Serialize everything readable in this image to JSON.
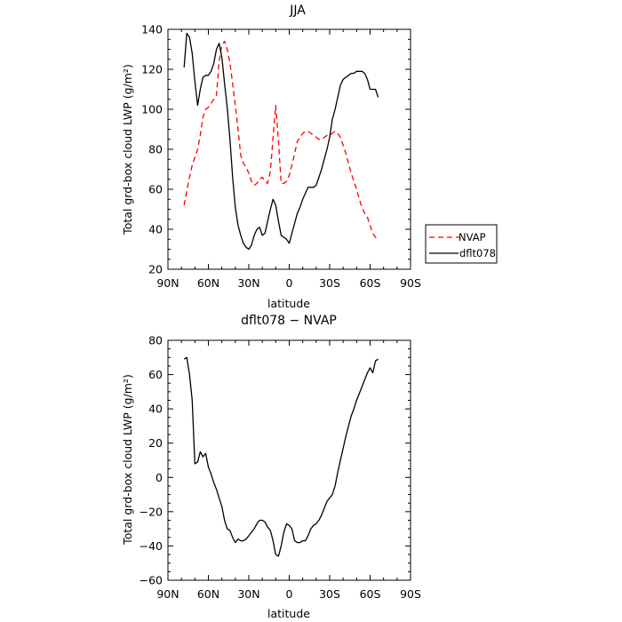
{
  "chart_data": [
    {
      "type": "line",
      "title": "JJA",
      "xlabel": "latitude",
      "ylabel": "Total grd-box cloud LWP (g/m²)",
      "xlim": [
        90,
        -90
      ],
      "ylim": [
        20,
        140
      ],
      "x_ticks": [
        90,
        60,
        30,
        0,
        -30,
        -60,
        -90
      ],
      "x_tick_labels": [
        "90N",
        "60N",
        "30N",
        "0",
        "30S",
        "60S",
        "90S"
      ],
      "y_ticks": [
        20,
        40,
        60,
        80,
        100,
        120,
        140
      ],
      "y_tick_labels": [
        "20",
        "40",
        "60",
        "80",
        "100",
        "120",
        "140"
      ],
      "legend_position": "outside-right",
      "series": [
        {
          "name": "NVAP",
          "color": "#ff0000",
          "style": "dashed",
          "x": [
            78,
            75,
            72,
            70,
            68,
            66,
            64,
            62,
            60,
            58,
            56,
            54,
            52,
            50,
            48,
            46,
            44,
            42,
            40,
            38,
            36,
            34,
            32,
            30,
            28,
            26,
            24,
            22,
            20,
            18,
            16,
            14,
            12,
            10,
            8,
            6,
            4,
            2,
            0,
            -2,
            -4,
            -6,
            -8,
            -10,
            -12,
            -14,
            -16,
            -18,
            -20,
            -22,
            -24,
            -26,
            -28,
            -30,
            -32,
            -34,
            -36,
            -38,
            -40,
            -42,
            -44,
            -46,
            -48,
            -50,
            -52,
            -54,
            -56,
            -58,
            -60,
            -62,
            -64,
            -66
          ],
          "y": [
            52,
            63,
            72,
            76,
            80,
            87,
            96,
            100,
            101,
            103,
            105,
            107,
            124,
            132,
            134,
            130,
            123,
            113,
            102,
            90,
            77,
            73,
            71,
            68,
            64,
            62,
            63,
            65,
            66,
            64,
            63,
            69,
            86,
            102,
            84,
            63,
            63,
            64,
            67,
            72,
            78,
            84,
            86,
            88,
            89,
            89,
            88,
            87,
            86,
            85,
            85,
            86,
            87,
            87,
            88,
            89,
            88,
            86,
            82,
            78,
            73,
            68,
            64,
            60,
            55,
            51,
            48,
            46,
            42,
            38,
            36,
            35
          ]
        },
        {
          "name": "dflt078",
          "color": "#000000",
          "style": "solid",
          "x": [
            78,
            76,
            74,
            72,
            70,
            68,
            66,
            64,
            62,
            60,
            58,
            56,
            54,
            52,
            50,
            48,
            46,
            44,
            42,
            40,
            38,
            36,
            34,
            32,
            30,
            28,
            26,
            24,
            22,
            20,
            18,
            16,
            14,
            12,
            10,
            8,
            6,
            4,
            2,
            0,
            -2,
            -4,
            -6,
            -8,
            -10,
            -12,
            -14,
            -16,
            -18,
            -20,
            -22,
            -24,
            -26,
            -28,
            -30,
            -32,
            -34,
            -36,
            -38,
            -40,
            -42,
            -44,
            -46,
            -48,
            -50,
            -52,
            -54,
            -56,
            -58,
            -60,
            -62,
            -64,
            -66
          ],
          "y": [
            121,
            138,
            136,
            128,
            114,
            102,
            110,
            116,
            117,
            117,
            119,
            123,
            130,
            133,
            126,
            113,
            101,
            85,
            66,
            51,
            42,
            37,
            33,
            31,
            30,
            32,
            37,
            40,
            41,
            37,
            38,
            44,
            50,
            55,
            52,
            44,
            37,
            36,
            35,
            33,
            38,
            43,
            48,
            51,
            55,
            58,
            61,
            61,
            61,
            62,
            66,
            70,
            75,
            80,
            86,
            95,
            100,
            106,
            112,
            115,
            116,
            117,
            118,
            118,
            119,
            119,
            119,
            118,
            115,
            110,
            110,
            110,
            106
          ]
        }
      ]
    },
    {
      "type": "line",
      "title": "dflt078 − NVAP",
      "xlabel": "latitude",
      "ylabel": "Total grd-box cloud LWP (g/m²)",
      "xlim": [
        90,
        -90
      ],
      "ylim": [
        -60,
        80
      ],
      "x_ticks": [
        90,
        60,
        30,
        0,
        -30,
        -60,
        -90
      ],
      "x_tick_labels": [
        "90N",
        "60N",
        "30N",
        "0",
        "30S",
        "60S",
        "90S"
      ],
      "y_ticks": [
        -60,
        -40,
        -20,
        0,
        20,
        40,
        60,
        80
      ],
      "y_tick_labels": [
        "−60",
        "−40",
        "−20",
        "0",
        "20",
        "40",
        "60",
        "80"
      ],
      "series": [
        {
          "color": "#000000",
          "style": "solid",
          "x": [
            78,
            76,
            74,
            72,
            70,
            68,
            66,
            64,
            62,
            60,
            58,
            56,
            54,
            52,
            50,
            48,
            46,
            44,
            42,
            40,
            38,
            36,
            34,
            32,
            30,
            28,
            26,
            24,
            22,
            20,
            18,
            16,
            14,
            12,
            10,
            8,
            6,
            4,
            2,
            0,
            -2,
            -4,
            -6,
            -8,
            -10,
            -12,
            -14,
            -16,
            -18,
            -20,
            -22,
            -24,
            -26,
            -28,
            -30,
            -32,
            -34,
            -36,
            -38,
            -40,
            -42,
            -44,
            -46,
            -48,
            -50,
            -52,
            -54,
            -56,
            -58,
            -60,
            -62,
            -64,
            -66
          ],
          "y": [
            69,
            70,
            60,
            45,
            8,
            9,
            15,
            12,
            14,
            6,
            2,
            -3,
            -7,
            -12,
            -17,
            -25,
            -30,
            -31,
            -35,
            -38,
            -36,
            -37,
            -37,
            -36,
            -34,
            -32,
            -30,
            -27,
            -25,
            -25,
            -26,
            -29,
            -31,
            -37,
            -45,
            -46,
            -40,
            -32,
            -27,
            -28,
            -30,
            -37,
            -38,
            -38,
            -37,
            -37,
            -34,
            -30,
            -28,
            -27,
            -25,
            -22,
            -18,
            -14,
            -12,
            -10,
            -5,
            3,
            10,
            17,
            24,
            30,
            36,
            40,
            45,
            49,
            53,
            57,
            61,
            64,
            61,
            68,
            69
          ]
        }
      ]
    }
  ]
}
